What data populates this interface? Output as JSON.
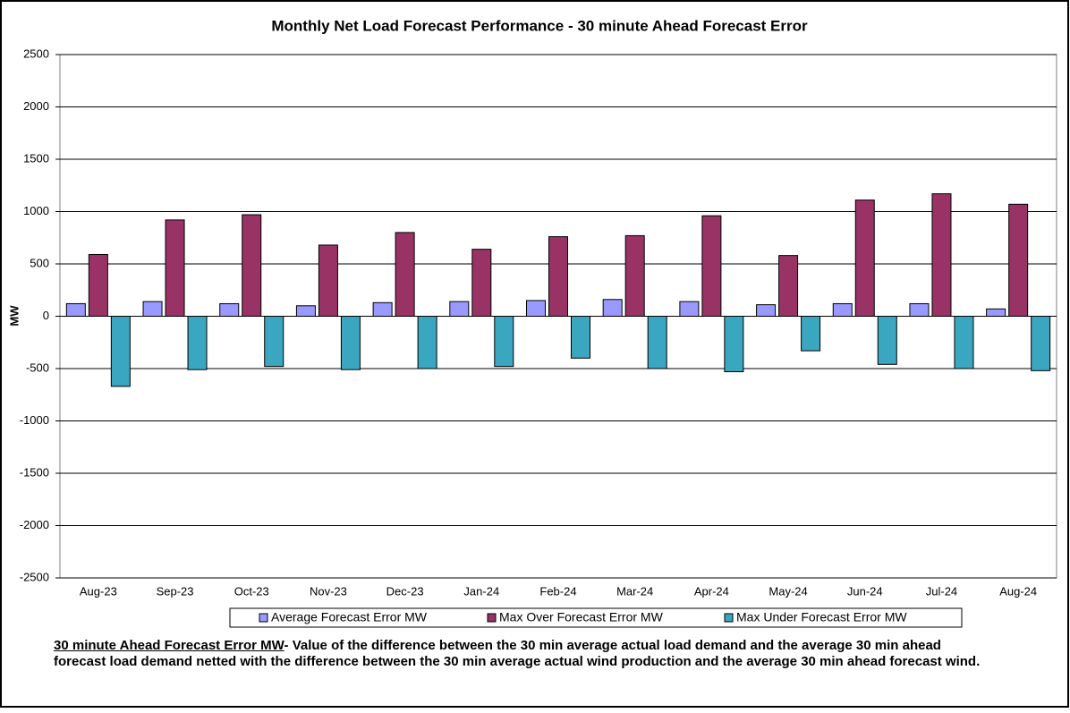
{
  "chart_data": {
    "type": "bar",
    "title": "Monthly Net Load Forecast Performance - 30 minute Ahead Forecast Error",
    "y_label": "MW",
    "categories": [
      "Aug-23",
      "Sep-23",
      "Oct-23",
      "Nov-23",
      "Dec-23",
      "Jan-24",
      "Feb-24",
      "Mar-24",
      "Apr-24",
      "May-24",
      "Jun-24",
      "Jul-24",
      "Aug-24"
    ],
    "series": [
      {
        "name": "Average Forecast Error MW",
        "color": "#9999ff",
        "values": [
          120,
          140,
          120,
          100,
          130,
          140,
          150,
          160,
          140,
          110,
          120,
          120,
          70
        ]
      },
      {
        "name": "Max Over Forecast Error MW",
        "color": "#993366",
        "values": [
          590,
          920,
          970,
          680,
          800,
          640,
          760,
          770,
          960,
          580,
          1110,
          1170,
          1070
        ]
      },
      {
        "name": "Max Under Forecast Error MW",
        "color": "#3ba6bf",
        "values": [
          -670,
          -510,
          -480,
          -510,
          -500,
          -480,
          -400,
          -500,
          -530,
          -330,
          -460,
          -500,
          -520
        ]
      }
    ],
    "ylim": [
      -2500,
      2500
    ],
    "yticks": [
      -2500,
      -2000,
      -1500,
      -1000,
      -500,
      0,
      500,
      1000,
      1500,
      2000,
      2500
    ],
    "grid": true,
    "legend": "bottom",
    "footnote_term": "30 minute Ahead Forecast Error MW",
    "footnote_text": "- Value of the difference between the 30 min average actual load demand and the average 30 min ahead forecast load demand netted with the difference between the 30 min average actual wind production and the average 30 min ahead forecast wind."
  }
}
